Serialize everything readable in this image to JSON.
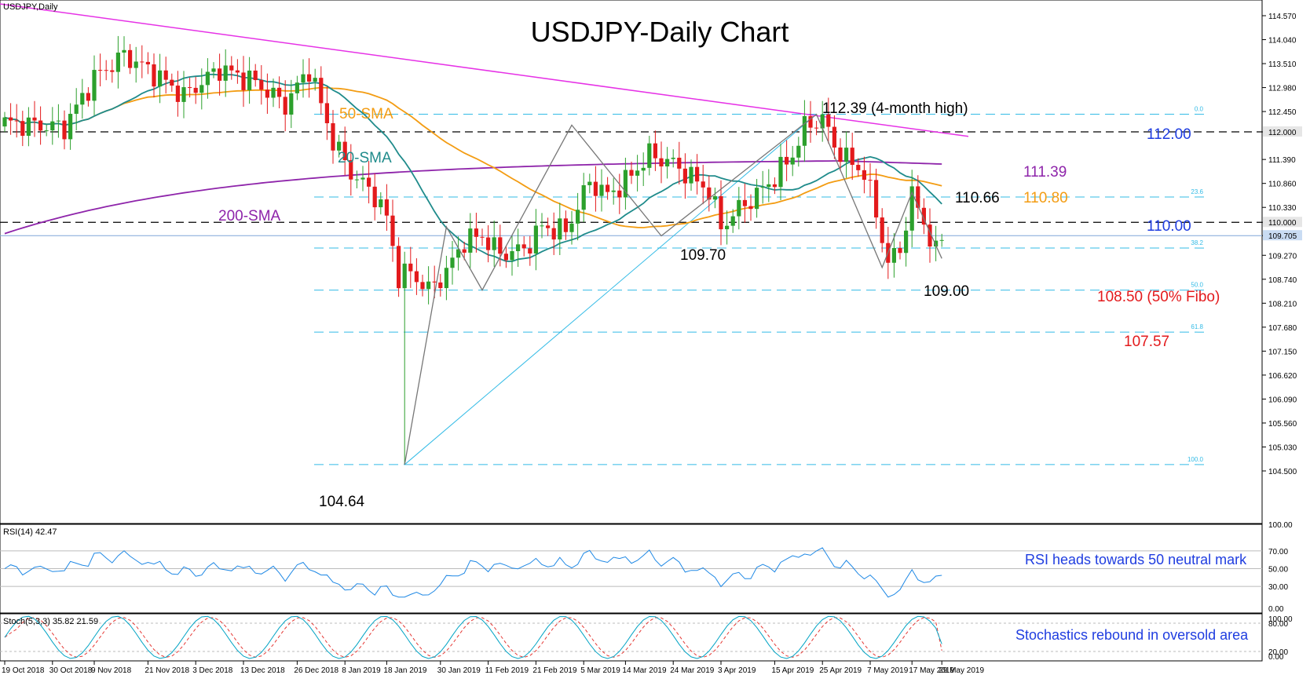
{
  "symbol_label": "USDJPY,Daily",
  "title": "USDJPY-Daily Chart",
  "colors": {
    "up_candle": "#2ca02c",
    "down_candle": "#e31a1c",
    "sma20": "#1f8b8b",
    "sma50": "#f39c12",
    "sma200": "#8e24aa",
    "trendline": "#e632e6",
    "fibo": "#33bbe6",
    "zigzag": "#777777",
    "rsi": "#1e88e5",
    "stoch_main": "#00a3c4",
    "stoch_signal": "#e53935",
    "blue_note": "#1f3de0",
    "red_note": "#e31a1c"
  },
  "price_axis": {
    "labels": [
      "114.570",
      "114.040",
      "113.510",
      "112.980",
      "112.450",
      "112.000",
      "111.390",
      "110.860",
      "110.330",
      "110.000",
      "109.705",
      "109.270",
      "108.740",
      "108.210",
      "107.680",
      "107.150",
      "106.620",
      "106.090",
      "105.560",
      "105.030",
      "104.500"
    ],
    "highlighted": [
      "112.000",
      "110.000",
      "109.705"
    ]
  },
  "date_axis": [
    "19 Oct 2018",
    "30 Oct 2018",
    "9 Nov 2018",
    "21 Nov 2018",
    "3 Dec 2018",
    "13 Dec 2018",
    "26 Dec 2018",
    "8 Jan 2019",
    "18 Jan 2019",
    "30 Jan 2019",
    "11 Feb 2019",
    "21 Feb 2019",
    "5 Mar 2019",
    "14 Mar 2019",
    "24 Mar 2019",
    "3 Apr 2019",
    "15 Apr 2019",
    "25 Apr 2019",
    "7 May 2019",
    "17 May 2019",
    "29 May 2019"
  ],
  "annotations": {
    "sma50": "50-SMA",
    "sma20": "20-SMA",
    "sma200": "200-SMA",
    "high_412": "112.39 (4-month high)",
    "level_112": "112.00",
    "level_11139": "111.39",
    "level_11080": "110.80",
    "level_11066": "110.66",
    "level_110": "110.00",
    "level_10970": "109.70",
    "level_109": "109.00",
    "fibo_50": "108.50 (50% Fibo)",
    "fibo_618": "107.57",
    "low": "104.64"
  },
  "fibo_labels": [
    "0.0",
    "23.6",
    "38.2",
    "50.0",
    "61.8",
    "100.0"
  ],
  "rsi": {
    "label": "RSI(14) 42.47",
    "axis": [
      "100.00",
      "70.00",
      "50.00",
      "30.00",
      "0.00"
    ],
    "note": "RSI heads towards 50 neutral mark"
  },
  "stoch": {
    "label": "Stoch(5,3,3) 35.82 21.59",
    "axis": [
      "100.00",
      "80.00",
      "20.00",
      "0.00"
    ],
    "note": "Stochastics rebound in oversold area"
  },
  "chart_data": {
    "type": "candlestick",
    "title": "USDJPY-Daily Chart",
    "period": "19 Oct 2018 – 29 May 2019",
    "y_range": [
      104.3,
      114.9
    ],
    "key_levels": {
      "four_month_high": 112.39,
      "resistance_112": 112.0,
      "sma200": 111.39,
      "sma50": 110.8,
      "swing_high_may": 110.66,
      "support_110": 110.0,
      "last_price": 109.705,
      "swing_low_mar": 109.7,
      "swing_low_may": 109.0,
      "fibo_50": 108.5,
      "fibo_618": 107.57,
      "low_jan": 104.64
    },
    "fibonacci": {
      "from": 104.64,
      "to": 112.39,
      "levels": [
        {
          "ratio": "0.0",
          "price": 112.39
        },
        {
          "ratio": "23.6",
          "price": 110.56
        },
        {
          "ratio": "38.2",
          "price": 109.43
        },
        {
          "ratio": "50.0",
          "price": 108.5
        },
        {
          "ratio": "61.8",
          "price": 107.57
        },
        {
          "ratio": "100.0",
          "price": 104.64
        }
      ]
    },
    "rsi_last": 42.47,
    "stoch_last": [
      35.82,
      21.59
    ]
  }
}
